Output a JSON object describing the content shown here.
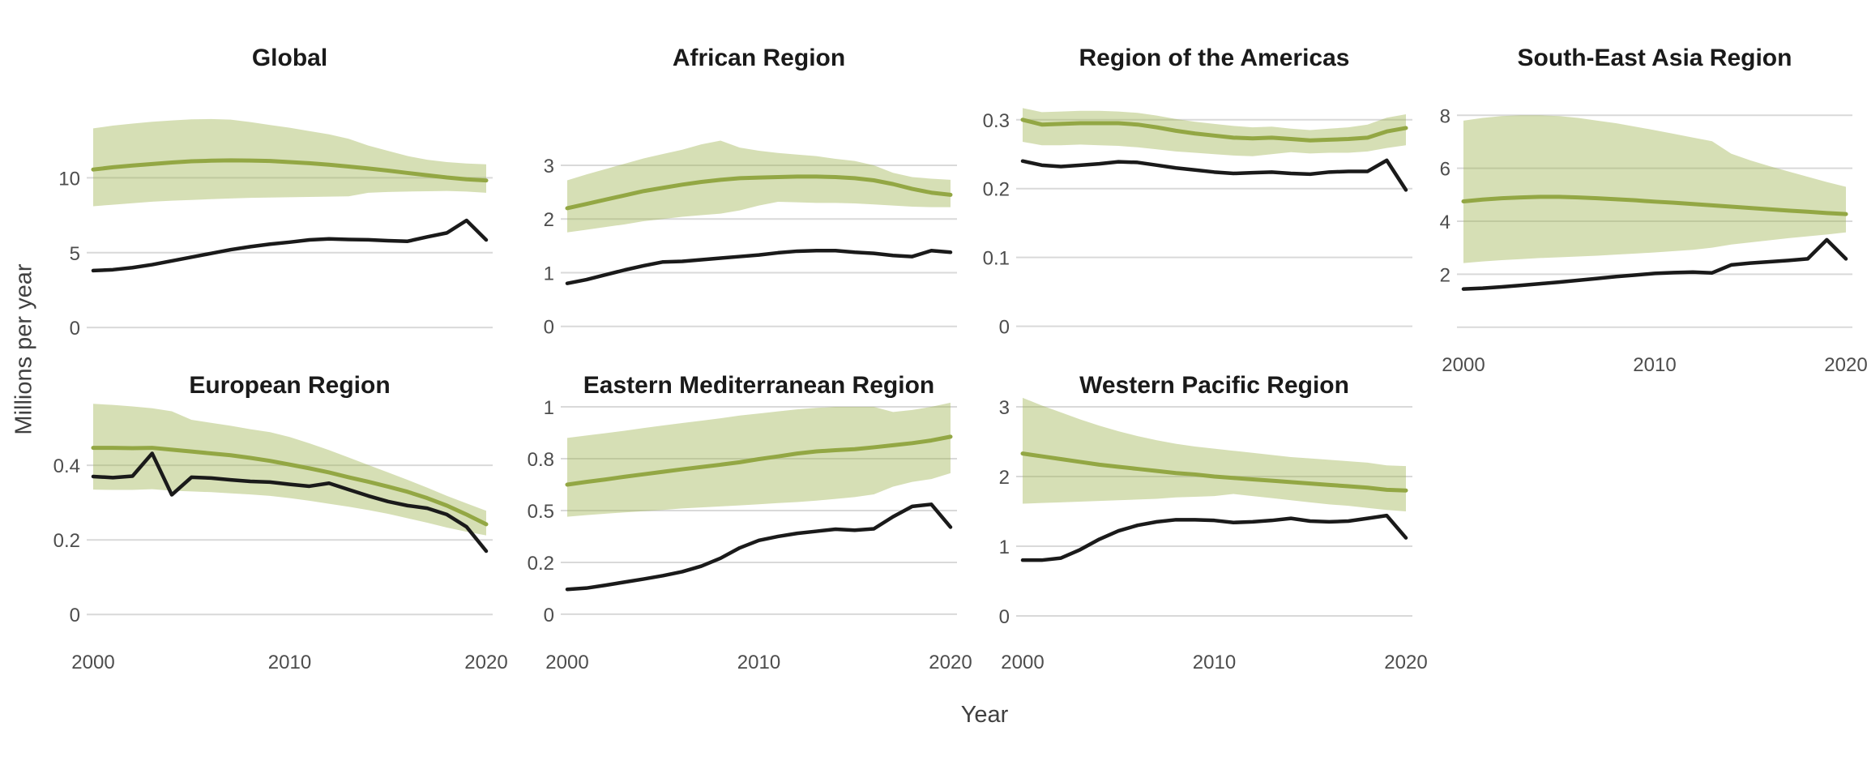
{
  "chart_data": {
    "type": "line",
    "ylabel": "Millions per year",
    "xlabel": "Year",
    "x": [
      2000,
      2001,
      2002,
      2003,
      2004,
      2005,
      2006,
      2007,
      2008,
      2009,
      2010,
      2011,
      2012,
      2013,
      2014,
      2015,
      2016,
      2017,
      2018,
      2019,
      2020
    ],
    "x_ticks": {
      "values": [
        2000,
        2010,
        2020
      ],
      "labels": [
        "2000",
        "2010",
        "2020"
      ]
    },
    "grid": "horizontal-only",
    "legend": "none",
    "colors": {
      "estimate_line": "#93a744",
      "estimate_ribbon": "#9eb24f",
      "observed_line": "#1a1a1a",
      "gridline": "#d9d9d9",
      "title_text": "#1a1a1a",
      "axis_text": "#4d4d4d"
    },
    "panels": [
      {
        "title": "Global",
        "y_domain": [
          -0.1,
          17.0
        ],
        "y_ticks": {
          "values": [
            0,
            5,
            10
          ],
          "labels": [
            "0",
            "5",
            "10"
          ]
        },
        "green_line": [
          10.55,
          10.7,
          10.82,
          10.92,
          11.02,
          11.1,
          11.14,
          11.16,
          11.15,
          11.12,
          11.05,
          10.97,
          10.87,
          10.75,
          10.62,
          10.48,
          10.32,
          10.17,
          10.02,
          9.9,
          9.82
        ],
        "ribbon_upper": [
          13.3,
          13.48,
          13.62,
          13.74,
          13.83,
          13.9,
          13.92,
          13.88,
          13.72,
          13.52,
          13.34,
          13.12,
          12.9,
          12.6,
          12.15,
          11.8,
          11.45,
          11.2,
          11.05,
          10.95,
          10.9
        ],
        "ribbon_lower": [
          8.1,
          8.2,
          8.3,
          8.4,
          8.47,
          8.52,
          8.57,
          8.62,
          8.66,
          8.68,
          8.7,
          8.72,
          8.74,
          8.76,
          9.0,
          9.05,
          9.08,
          9.1,
          9.12,
          9.08,
          9.0
        ],
        "black_line": [
          3.8,
          3.86,
          4.0,
          4.2,
          4.45,
          4.7,
          4.95,
          5.2,
          5.4,
          5.57,
          5.7,
          5.85,
          5.92,
          5.88,
          5.86,
          5.8,
          5.76,
          6.05,
          6.32,
          7.15,
          5.85
        ]
      },
      {
        "title": "African Region",
        "y_domain": [
          -0.05,
          4.72
        ],
        "y_ticks": {
          "values": [
            0,
            1,
            2,
            3
          ],
          "labels": [
            "0",
            "1",
            "2",
            "3"
          ]
        },
        "green_line": [
          2.2,
          2.28,
          2.36,
          2.44,
          2.52,
          2.58,
          2.64,
          2.69,
          2.73,
          2.76,
          2.77,
          2.78,
          2.79,
          2.79,
          2.78,
          2.76,
          2.72,
          2.65,
          2.56,
          2.49,
          2.45
        ],
        "ribbon_upper": [
          2.72,
          2.83,
          2.93,
          3.03,
          3.13,
          3.21,
          3.29,
          3.39,
          3.46,
          3.33,
          3.27,
          3.23,
          3.2,
          3.17,
          3.12,
          3.08,
          3.0,
          2.86,
          2.78,
          2.75,
          2.73
        ],
        "ribbon_lower": [
          1.75,
          1.8,
          1.85,
          1.9,
          1.96,
          2.0,
          2.04,
          2.07,
          2.1,
          2.16,
          2.25,
          2.32,
          2.31,
          2.3,
          2.3,
          2.29,
          2.27,
          2.25,
          2.23,
          2.22,
          2.22
        ],
        "black_line": [
          0.8,
          0.87,
          0.96,
          1.05,
          1.13,
          1.2,
          1.21,
          1.24,
          1.27,
          1.3,
          1.33,
          1.37,
          1.4,
          1.41,
          1.41,
          1.38,
          1.36,
          1.32,
          1.3,
          1.41,
          1.38
        ]
      },
      {
        "title": "Region of the Americas",
        "y_domain": [
          -0.004,
          0.368
        ],
        "y_ticks": {
          "values": [
            0,
            0.1,
            0.2,
            0.3
          ],
          "labels": [
            "0",
            "0.1",
            "0.2",
            "0.3"
          ]
        },
        "green_line": [
          0.3,
          0.293,
          0.294,
          0.295,
          0.295,
          0.295,
          0.293,
          0.289,
          0.284,
          0.28,
          0.277,
          0.274,
          0.273,
          0.274,
          0.272,
          0.27,
          0.271,
          0.272,
          0.274,
          0.283,
          0.288
        ],
        "ribbon_upper": [
          0.317,
          0.311,
          0.312,
          0.313,
          0.313,
          0.312,
          0.31,
          0.306,
          0.301,
          0.297,
          0.294,
          0.291,
          0.289,
          0.29,
          0.287,
          0.285,
          0.287,
          0.289,
          0.293,
          0.303,
          0.308
        ],
        "ribbon_lower": [
          0.268,
          0.263,
          0.263,
          0.264,
          0.263,
          0.262,
          0.26,
          0.257,
          0.254,
          0.252,
          0.25,
          0.248,
          0.247,
          0.25,
          0.253,
          0.251,
          0.252,
          0.252,
          0.254,
          0.259,
          0.263
        ],
        "black_line": [
          0.24,
          0.234,
          0.232,
          0.234,
          0.236,
          0.239,
          0.238,
          0.234,
          0.23,
          0.227,
          0.224,
          0.222,
          0.223,
          0.224,
          0.222,
          0.221,
          0.224,
          0.225,
          0.225,
          0.241,
          0.198
        ]
      },
      {
        "title": "South-East Asia Region",
        "y_domain": [
          -0.07,
          9.6
        ],
        "y_ticks": {
          "values": [
            0,
            2,
            4,
            6,
            8
          ],
          "labels": [
            "",
            "2",
            "4",
            "6",
            "8"
          ]
        },
        "green_line": [
          4.75,
          4.82,
          4.87,
          4.9,
          4.92,
          4.92,
          4.9,
          4.87,
          4.83,
          4.79,
          4.74,
          4.7,
          4.65,
          4.6,
          4.55,
          4.5,
          4.45,
          4.4,
          4.36,
          4.31,
          4.27
        ],
        "ribbon_upper": [
          7.8,
          7.9,
          7.97,
          8.0,
          8.0,
          7.97,
          7.9,
          7.8,
          7.7,
          7.57,
          7.44,
          7.3,
          7.16,
          7.02,
          6.55,
          6.3,
          6.08,
          5.88,
          5.68,
          5.48,
          5.3
        ],
        "ribbon_lower": [
          2.42,
          2.48,
          2.53,
          2.57,
          2.61,
          2.64,
          2.67,
          2.7,
          2.74,
          2.78,
          2.82,
          2.87,
          2.92,
          3.0,
          3.12,
          3.2,
          3.28,
          3.36,
          3.43,
          3.5,
          3.58
        ],
        "black_line": [
          1.44,
          1.47,
          1.52,
          1.58,
          1.64,
          1.7,
          1.77,
          1.84,
          1.91,
          1.97,
          2.03,
          2.06,
          2.08,
          2.05,
          2.35,
          2.42,
          2.47,
          2.52,
          2.58,
          3.3,
          2.58
        ]
      },
      {
        "title": "European Region",
        "y_domain": [
          -0.03,
          0.583
        ],
        "y_ticks": {
          "values": [
            0,
            0.2,
            0.4
          ],
          "labels": [
            "0",
            "0.2",
            "0.4"
          ]
        },
        "green_line": [
          0.447,
          0.447,
          0.446,
          0.447,
          0.442,
          0.437,
          0.432,
          0.427,
          0.42,
          0.412,
          0.402,
          0.392,
          0.381,
          0.368,
          0.356,
          0.343,
          0.329,
          0.312,
          0.292,
          0.268,
          0.242
        ],
        "ribbon_upper": [
          0.565,
          0.562,
          0.558,
          0.553,
          0.545,
          0.522,
          0.514,
          0.506,
          0.497,
          0.489,
          0.476,
          0.459,
          0.441,
          0.421,
          0.401,
          0.381,
          0.361,
          0.34,
          0.318,
          0.298,
          0.278
        ],
        "ribbon_lower": [
          0.335,
          0.334,
          0.334,
          0.336,
          0.332,
          0.33,
          0.328,
          0.325,
          0.322,
          0.318,
          0.312,
          0.305,
          0.297,
          0.289,
          0.28,
          0.27,
          0.258,
          0.246,
          0.233,
          0.222,
          0.212
        ],
        "black_line": [
          0.37,
          0.367,
          0.371,
          0.432,
          0.321,
          0.368,
          0.366,
          0.361,
          0.357,
          0.355,
          0.349,
          0.344,
          0.352,
          0.335,
          0.318,
          0.303,
          0.292,
          0.285,
          0.268,
          0.235,
          0.17
        ]
      },
      {
        "title": "Eastern Mediterranean Region",
        "y_domain": [
          -0.055,
          1.047
        ],
        "y_ticks": {
          "values": [
            0,
            0.25,
            0.5,
            0.75,
            1
          ],
          "labels": [
            "0",
            "0.2",
            "0.5",
            "0.8",
            "1"
          ]
        },
        "green_line": [
          0.625,
          0.638,
          0.65,
          0.663,
          0.675,
          0.687,
          0.699,
          0.71,
          0.721,
          0.733,
          0.748,
          0.761,
          0.775,
          0.785,
          0.791,
          0.796,
          0.805,
          0.815,
          0.825,
          0.838,
          0.856
        ],
        "ribbon_upper": [
          0.85,
          0.862,
          0.873,
          0.885,
          0.898,
          0.91,
          0.922,
          0.933,
          0.945,
          0.958,
          0.968,
          0.978,
          0.988,
          0.995,
          1.0,
          1.0,
          1.0,
          0.975,
          0.985,
          1.0,
          1.02
        ],
        "ribbon_lower": [
          0.47,
          0.478,
          0.485,
          0.491,
          0.497,
          0.503,
          0.51,
          0.515,
          0.52,
          0.525,
          0.53,
          0.536,
          0.541,
          0.548,
          0.556,
          0.565,
          0.578,
          0.615,
          0.638,
          0.652,
          0.68
        ],
        "black_line": [
          0.12,
          0.126,
          0.14,
          0.155,
          0.17,
          0.186,
          0.205,
          0.232,
          0.27,
          0.32,
          0.356,
          0.375,
          0.39,
          0.4,
          0.41,
          0.405,
          0.412,
          0.47,
          0.52,
          0.53,
          0.42
        ]
      },
      {
        "title": "Western Pacific Region",
        "y_domain": [
          -0.14,
          3.14
        ],
        "y_ticks": {
          "values": [
            0,
            1,
            2,
            3
          ],
          "labels": [
            "0",
            "1",
            "2",
            "3"
          ]
        },
        "green_line": [
          2.33,
          2.29,
          2.25,
          2.21,
          2.17,
          2.14,
          2.11,
          2.08,
          2.05,
          2.03,
          2.0,
          1.98,
          1.96,
          1.94,
          1.92,
          1.9,
          1.88,
          1.86,
          1.84,
          1.81,
          1.8
        ],
        "ribbon_upper": [
          3.13,
          3.02,
          2.92,
          2.82,
          2.73,
          2.65,
          2.58,
          2.52,
          2.47,
          2.43,
          2.4,
          2.37,
          2.34,
          2.31,
          2.28,
          2.26,
          2.24,
          2.22,
          2.2,
          2.16,
          2.15
        ],
        "ribbon_lower": [
          1.61,
          1.62,
          1.63,
          1.64,
          1.65,
          1.66,
          1.67,
          1.68,
          1.7,
          1.71,
          1.72,
          1.75,
          1.72,
          1.69,
          1.66,
          1.63,
          1.6,
          1.58,
          1.55,
          1.52,
          1.5
        ],
        "black_line": [
          0.8,
          0.8,
          0.83,
          0.95,
          1.1,
          1.22,
          1.3,
          1.35,
          1.38,
          1.38,
          1.37,
          1.34,
          1.35,
          1.37,
          1.4,
          1.36,
          1.35,
          1.36,
          1.4,
          1.44,
          1.12
        ]
      }
    ]
  }
}
